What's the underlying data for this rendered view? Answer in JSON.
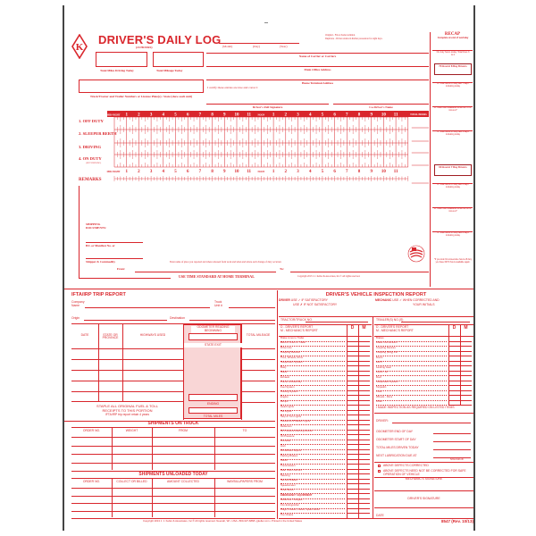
{
  "header": {
    "title": "DRIVER'S DAILY LOG",
    "subtitle": "(24 HOURS)",
    "date_labels": [
      "(Month)",
      "(Day)",
      "(Year)"
    ],
    "copies_note": [
      "Original - File at home terminal.",
      "Duplicate - Driver retains in his/her possession for eight days."
    ],
    "total_miles_label": "Total Miles Driving Today",
    "total_mileage_label": "Total Mileage Today",
    "carrier_label": "Name of Carrier or Carriers",
    "main_office_label": "Main Office Address",
    "home_terminal_label": "Home Terminal Address",
    "certify_text": "I certify these entries are true and correct:",
    "truck_label": "Truck/Tractor and Trailer Numbers or License Plate(s) / State (show each unit)",
    "signature_label": "Driver's Full Signature",
    "codriver_label": "Co-Driver's Name"
  },
  "grid": {
    "hour_labels": [
      "MID-NIGHT",
      "1",
      "2",
      "3",
      "4",
      "5",
      "6",
      "7",
      "8",
      "9",
      "10",
      "11",
      "NOON",
      "1",
      "2",
      "3",
      "4",
      "5",
      "6",
      "7",
      "8",
      "9",
      "10",
      "11"
    ],
    "total_label": "TOTAL HOURS",
    "rows": [
      {
        "label": "1. OFF DUTY",
        "sub": ""
      },
      {
        "label": "2. SLEEPER BERTH",
        "sub": ""
      },
      {
        "label": "3. DRIVING",
        "sub": ""
      },
      {
        "label": "4. ON DUTY",
        "sub": "(NOT DRIVING)"
      }
    ],
    "remarks_label": "REMARKS"
  },
  "remarks": {
    "shipping_docs": "SHIPPING DOCUMENTS:",
    "bl_label": "B/L or Manifest No. or",
    "shipper_label": "Shipper & Commodity",
    "instruction": "Enter name of place you reported and where released from work and when and where each change of duty occurred.",
    "from_label": "From:",
    "to_label": "To:",
    "standard_note": "USE TIME STANDARD AT HOME TERMINAL",
    "copyright": "Copyright 2013 J. J. Keller & Associates, Inc.® All rights reserved."
  },
  "recap": {
    "title": "RECAP",
    "subtitle": "Complete at end of workday",
    "on_duty_today": "On duty hours today. Total lines 3 & 4",
    "box70": "70 Hours/ 8 Day Drivers",
    "box60": "60 Hours/ 7 Day Drivers",
    "items70": [
      "A. Total hours on duty last 7 days including today",
      "B. Total hours available tomorrow 70 hr. minus A*",
      "C. Total hours on duty last 5 days including today"
    ],
    "items60": [
      "A. Total hours on duty last 6 days including today",
      "B. Total hours available tomorrow 60 hr. minus A*",
      "C. Total hours on duty last 8 days including today"
    ],
    "footnote": "*If you took 34 consecutive hours off duty you have 60/70 hours available again."
  },
  "ifta": {
    "title": "IFTA/IRP TRIP REPORT",
    "company_label": "Company Name",
    "truck_label": "Truck Unit #",
    "origin_label": "Origin",
    "destination_label": "Destination",
    "columns": [
      "DATE",
      "STATE OR PROVINCE",
      "HIGHWAYS USED",
      "",
      "TOTAL MILEAGE"
    ],
    "odometer_label": "ODOMETER READING BEGINNING",
    "state_exit_label": "STATE EXIT",
    "ending_label": "ENDING",
    "total_miles_label": "TOTAL MILES",
    "staple_text": [
      "STAPLE ALL ORIGINAL FUEL & TOLL",
      "RECEIPTS TO THIS PORTION"
    ],
    "retain_text": "IFTA/IRP trip report retain 4 years"
  },
  "shipments_on_truck": {
    "title": "SHIPMENTS ON TRUCK",
    "columns": [
      "ORDER NO.",
      "WEIGHT",
      "FROM",
      "TO"
    ]
  },
  "shipments_unloaded": {
    "title": "SHIPMENTS UNLOADED TODAY",
    "columns": [
      "ORDER NO.",
      "COLLECT OR BILLED",
      "AMOUNT COLLECTED",
      "WAYBILL/PAPERS FROM"
    ]
  },
  "inspection": {
    "title": "DRIVER'S VEHICLE INSPECTION REPORT",
    "driver_use": [
      "DRIVER",
      "USE ✓ IF SATISFACTORY",
      "USE ✗ IF NOT SATISFACTORY"
    ],
    "mechanic_use": [
      "MECHANIC",
      "USE ✓ WHEN CORRECTED AND",
      "YOUR INITIALS"
    ],
    "tractor_label": "TRACTOR/TRUCK NO.",
    "trailer_label": "TRAILER(S) NO.(S)",
    "legend": [
      "D - DRIVER'S REPORT",
      "M - MECHANIC'S REPORT"
    ],
    "d_label": "D",
    "m_label": "M",
    "tractor_items": [
      "Brake Lines to Trailer",
      "Electric Lines to Trailer",
      "Drive Line",
      "Coupling Devices",
      "Tires, Wheels, Rims",
      "Suspension System",
      "Body",
      "Glass",
      "Exhaust",
      "Frame & Assembly",
      "Fuel System",
      "Cooling System",
      "Engine",
      "Lamps",
      "Head Lights",
      "Tail Lights",
      "Stop & Turn Lights",
      "Clearance & Marker Lights",
      "Reflectors",
      "Air Pressure Warning Device",
      "Oil Pressure",
      "Ammeter",
      "Horn",
      "Windshield Wipers",
      "Parking Brakes",
      "Clutch",
      "Transmission",
      "Rear Vision Mirrors",
      "Steering",
      "Service Brakes",
      "Speedometer",
      "Other Items",
      "EMERGENCY EQUIPMENT",
      "Reflective Triangles",
      "Fire Extinguisher",
      "Flags, Fusees, Flares, Spare Bulbs",
      "Tire Chains"
    ],
    "trailer_items": [
      "Brakes",
      "Brake Connections",
      "Coupling Devices",
      "Coupling (King) Pin",
      "Doors",
      "Hitch",
      "Landing Gear",
      "Lights - All",
      "Roof",
      "Suspension System",
      "Tarpaulin",
      "Tires",
      "Wheels - Rims",
      "Other"
    ],
    "made_inspection": "I MADE INSPECTION AS REQUIRED ON LISTED ITEMS",
    "driver_label": "DRIVER:",
    "odometer_end": "ODOMETER END OF DAY",
    "odometer_start": "ODOMETER START OF DAY",
    "total_miles": "TOTAL MILES DRIVEN TODAY",
    "next_lube": "NEXT LUBRICATION DUE AT",
    "mileage_label": "MILEAGE",
    "corrected": "ABOVE DEFECTS CORRECTED",
    "not_corrected": "ABOVE DEFECTS NEED NOT BE CORRECTED FOR SAFE OPERATION OF VEHICLE",
    "mechanic_sig": "MECHANIC'S SIGNATURE",
    "driver_sig": "DRIVER'S SIGNATURE",
    "date_label": "DATE"
  },
  "footer": {
    "copyright": "Copyright 2013 J. J. Keller & Associates, Inc.® All rights reserved. Neenah, WI • USA • 800-327-6868 • jjkeller.com • Printed in the United States",
    "form_number": "8547 (Rev. 10/13)"
  },
  "colors": {
    "ink": "#d9262c",
    "fill": "#f9d6d6",
    "frame": "#444444"
  }
}
